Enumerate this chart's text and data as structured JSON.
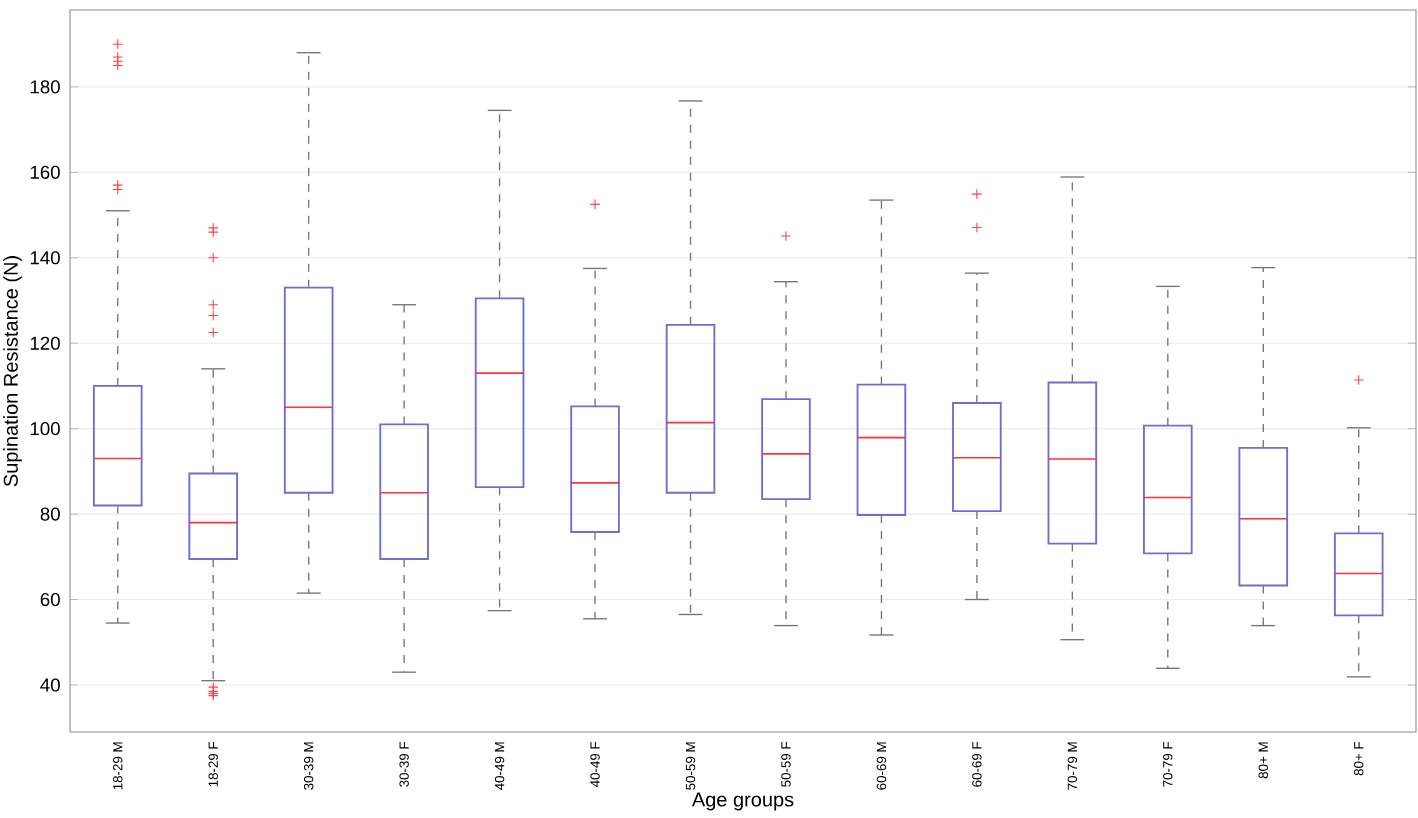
{
  "chart_data": {
    "type": "box",
    "xlabel": "Age groups",
    "ylabel": "Supination Resistance (N)",
    "categories": [
      "18-29 M",
      "18-29 F",
      "30-39 M",
      "30-39 F",
      "40-49 M",
      "40-49 F",
      "50-59 M",
      "50-59 F",
      "60-69 M",
      "60-69 F",
      "70-79 M",
      "70-79 F",
      "80+ M",
      "80+ F"
    ],
    "ylim": [
      29,
      198
    ],
    "yticks": [
      40,
      60,
      80,
      100,
      120,
      140,
      160,
      180
    ],
    "grid": "y",
    "marker": "cross",
    "line_style": "dashed",
    "series": [
      {
        "color": "#6e6ed2",
        "boxes": [
          {
            "low": 54.5,
            "q1": 82,
            "median": 93,
            "q3": 110,
            "high": 151,
            "outliers": [
              190,
              187,
              186,
              185,
              157,
              156
            ]
          },
          {
            "low": 41,
            "q1": 69.5,
            "median": 78,
            "q3": 89.5,
            "high": 114,
            "outliers": [
              147,
              146,
              140,
              129,
              126.5,
              122.5,
              39.5,
              38.5,
              38,
              37.5
            ]
          },
          {
            "low": 61.5,
            "q1": 85,
            "median": 105,
            "q3": 133,
            "high": 188
          },
          {
            "low": 43,
            "q1": 69.5,
            "median": 85,
            "q3": 101,
            "high": 129
          },
          {
            "low": 57.4,
            "q1": 86.3,
            "median": 113,
            "q3": 130.5,
            "high": 174.5
          },
          {
            "low": 55.5,
            "q1": 75.8,
            "median": 87.3,
            "q3": 105.2,
            "high": 137.5,
            "outliers": [
              152.5
            ]
          },
          {
            "low": 56.5,
            "q1": 85,
            "median": 101.4,
            "q3": 124.3,
            "high": 176.7
          },
          {
            "low": 53.9,
            "q1": 83.5,
            "median": 94.1,
            "q3": 106.9,
            "high": 134.4,
            "outliers": [
              145.1
            ]
          },
          {
            "low": 51.7,
            "q1": 79.8,
            "median": 97.9,
            "q3": 110.3,
            "high": 153.5
          },
          {
            "low": 60,
            "q1": 80.7,
            "median": 93.2,
            "q3": 106,
            "high": 136.4,
            "outliers": [
              154.9,
              147.1
            ]
          },
          {
            "low": 50.6,
            "q1": 73.1,
            "median": 92.9,
            "q3": 110.8,
            "high": 158.9
          },
          {
            "low": 43.9,
            "q1": 70.8,
            "median": 83.9,
            "q3": 100.7,
            "high": 133.3
          },
          {
            "low": 53.9,
            "q1": 63.3,
            "median": 78.9,
            "q3": 95.5,
            "high": 137.7
          },
          {
            "low": 41.9,
            "q1": 56.3,
            "median": 66.1,
            "q3": 75.5,
            "high": 100.2,
            "outliers": [
              111.4
            ]
          }
        ]
      }
    ]
  }
}
